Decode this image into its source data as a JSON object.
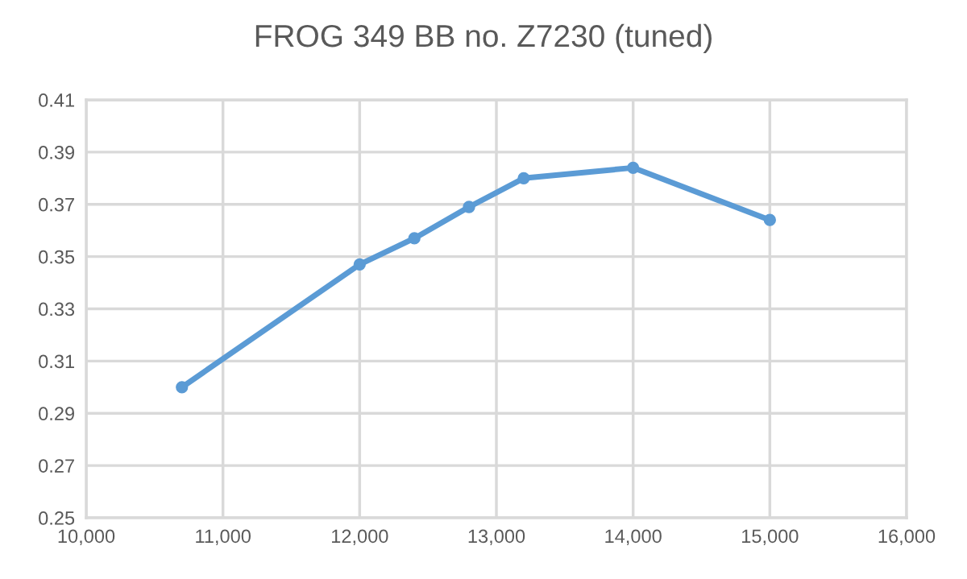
{
  "chart_data": {
    "type": "line",
    "title": "FROG 349 BB no. Z7230 (tuned)",
    "x": [
      10700,
      12000,
      12400,
      12800,
      13200,
      14000,
      15000
    ],
    "series": [
      {
        "color": "#5b9bd5",
        "values": [
          0.3,
          0.347,
          0.357,
          0.369,
          0.38,
          0.384,
          0.364
        ]
      }
    ],
    "xlim": [
      10000,
      16000
    ],
    "xticks": [
      {
        "value": 10000,
        "label": "10,000"
      },
      {
        "value": 11000,
        "label": "11,000"
      },
      {
        "value": 12000,
        "label": "12,000"
      },
      {
        "value": 13000,
        "label": "13,000"
      },
      {
        "value": 14000,
        "label": "14,000"
      },
      {
        "value": 15000,
        "label": "15,000"
      },
      {
        "value": 16000,
        "label": "16,000"
      }
    ],
    "ylim": [
      0.25,
      0.41
    ],
    "yticks": [
      0.25,
      0.27,
      0.29,
      0.31,
      0.33,
      0.35,
      0.37,
      0.39,
      0.41
    ],
    "grid": true,
    "marker": "circle",
    "line_style": "solid",
    "legend": false
  }
}
